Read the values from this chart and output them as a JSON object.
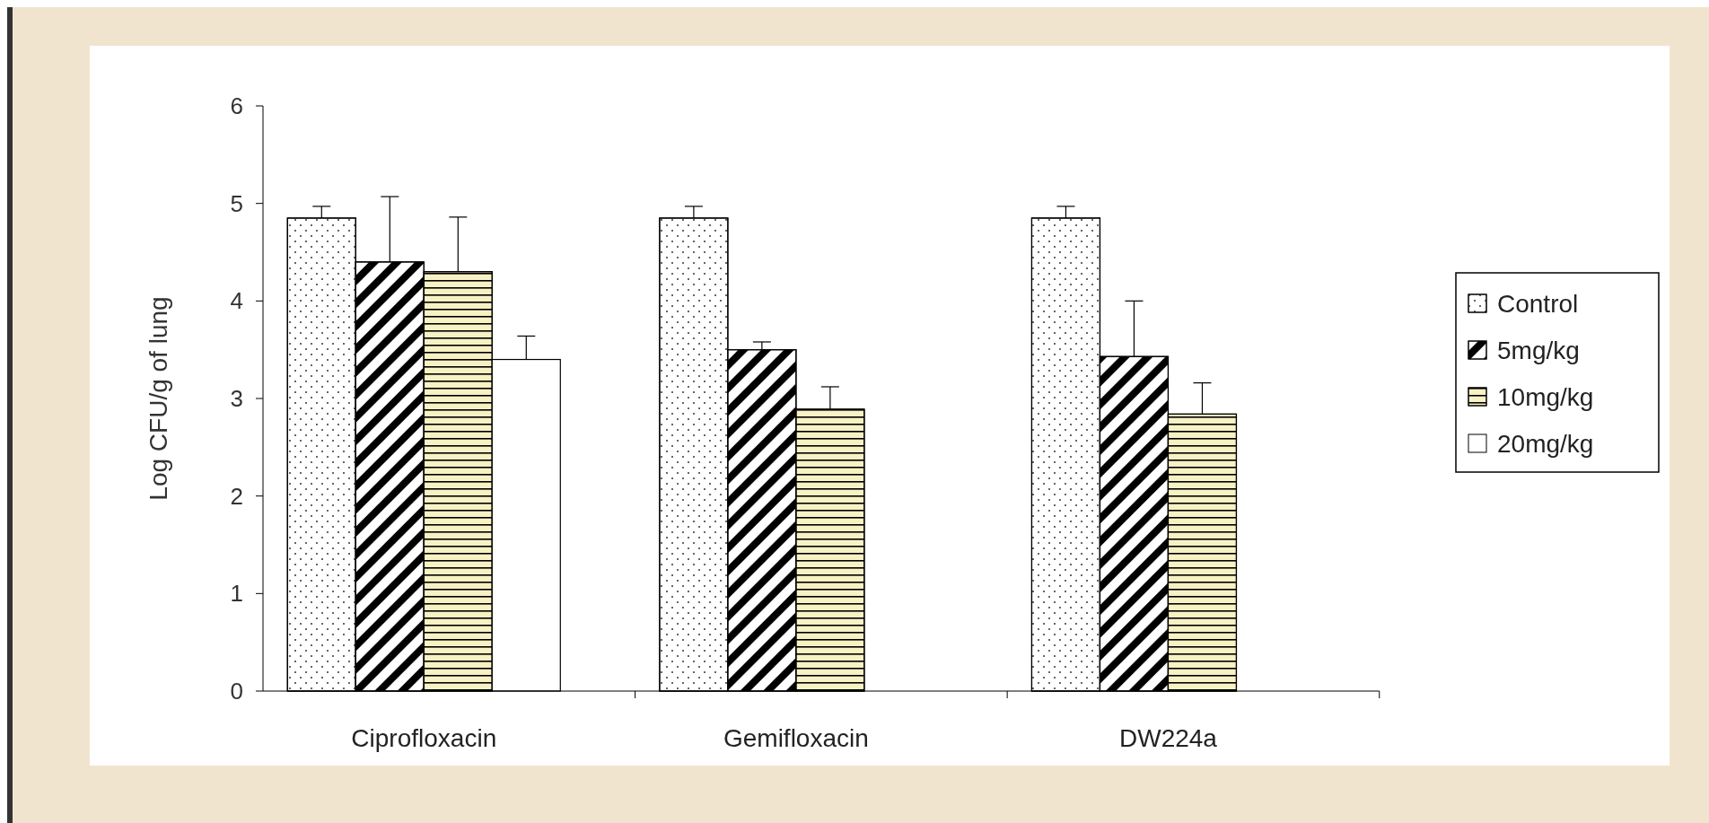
{
  "chart_data": {
    "type": "bar",
    "ylabel": "Log CFU/g of lung",
    "categories": [
      "Ciprofloxacin",
      "Gemifloxacin",
      "DW224a"
    ],
    "series": [
      {
        "name": "Control",
        "color": "#ffffff",
        "values": [
          4.85,
          4.85,
          4.85
        ],
        "errors": [
          0.12,
          0.12,
          0.12
        ]
      },
      {
        "name": "5mg/kg",
        "color": "#ffffff",
        "values": [
          4.4,
          3.5,
          3.43
        ],
        "errors": [
          0.67,
          0.08,
          0.57
        ]
      },
      {
        "name": "10mg/kg",
        "color": "#f7f1c4",
        "values": [
          4.3,
          2.89,
          2.84
        ],
        "errors": [
          0.56,
          0.23,
          0.32
        ]
      },
      {
        "name": "20mg/kg",
        "color": "#ffffff",
        "values": [
          3.4,
          null,
          null
        ],
        "errors": [
          0.24,
          null,
          null
        ]
      }
    ],
    "ylim": [
      0,
      6
    ],
    "yticks": [
      0,
      1,
      2,
      3,
      4,
      5,
      6
    ],
    "grid": false,
    "legend": "right"
  }
}
